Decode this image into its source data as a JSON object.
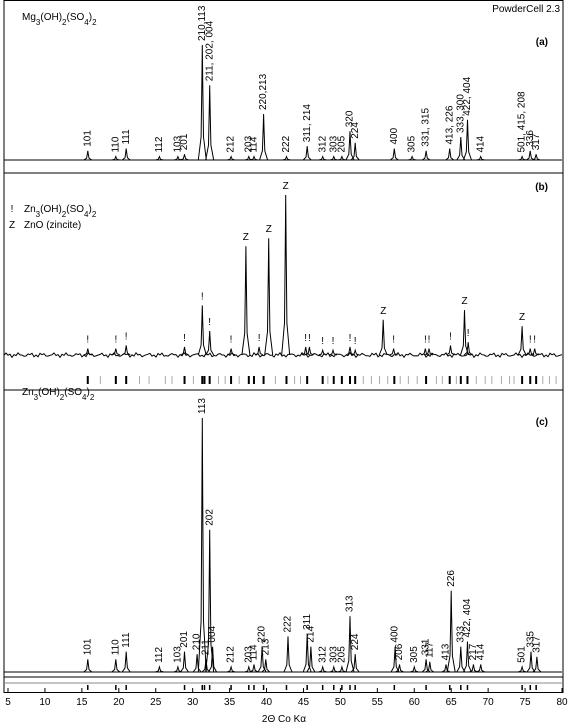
{
  "chart_data": {
    "type": "xrd",
    "software": "PowderCell 2.3",
    "xlabel": "2Θ Co Kα",
    "xlim": [
      5,
      80
    ],
    "xticks": [
      5,
      10,
      15,
      20,
      25,
      30,
      35,
      40,
      45,
      50,
      55,
      60,
      65,
      70,
      75,
      80
    ],
    "panels": [
      {
        "label": "(a)",
        "title": "Mg3(OH)2(SO4)2",
        "ylim": [
          0,
          100
        ],
        "label_style": "rotated",
        "peaks": [
          {
            "x": 15.8,
            "y": 8,
            "label": "101"
          },
          {
            "x": 19.6,
            "y": 3,
            "label": "110"
          },
          {
            "x": 21.0,
            "y": 10,
            "label": "111"
          },
          {
            "x": 25.5,
            "y": 3,
            "label": "112"
          },
          {
            "x": 28.0,
            "y": 3,
            "label": "103"
          },
          {
            "x": 28.9,
            "y": 5,
            "label": "201"
          },
          {
            "x": 31.3,
            "y": 100,
            "label": "210,113"
          },
          {
            "x": 32.3,
            "y": 65,
            "label": "211, 202, 004"
          },
          {
            "x": 35.2,
            "y": 3,
            "label": "212"
          },
          {
            "x": 37.6,
            "y": 3,
            "label": "203"
          },
          {
            "x": 38.3,
            "y": 3,
            "label": "114"
          },
          {
            "x": 39.6,
            "y": 40,
            "label": "220,213"
          },
          {
            "x": 42.7,
            "y": 3,
            "label": "222"
          },
          {
            "x": 45.5,
            "y": 12,
            "label": "311, 214"
          },
          {
            "x": 47.6,
            "y": 3,
            "label": "312"
          },
          {
            "x": 49.1,
            "y": 3,
            "label": "303"
          },
          {
            "x": 50.2,
            "y": 3,
            "label": "205"
          },
          {
            "x": 51.3,
            "y": 25,
            "label": "320"
          },
          {
            "x": 52.0,
            "y": 15,
            "label": "224"
          },
          {
            "x": 57.3,
            "y": 10,
            "label": "400"
          },
          {
            "x": 59.7,
            "y": 3,
            "label": "305"
          },
          {
            "x": 61.6,
            "y": 8,
            "label": "331, 315"
          },
          {
            "x": 64.8,
            "y": 10,
            "label": "413, 226"
          },
          {
            "x": 66.3,
            "y": 20,
            "label": "333, 300"
          },
          {
            "x": 67.2,
            "y": 35,
            "label": "422, 404"
          },
          {
            "x": 69.0,
            "y": 3,
            "label": "414"
          },
          {
            "x": 74.6,
            "y": 3,
            "label": "501, 415, 208"
          },
          {
            "x": 75.7,
            "y": 8,
            "label": "336"
          },
          {
            "x": 76.5,
            "y": 5,
            "label": "317"
          }
        ]
      },
      {
        "label": "(b)",
        "ylim": [
          0,
          100
        ],
        "label_style": "marker",
        "legend": [
          {
            "symbol": "!",
            "text": "Zn3(OH)2(SO4)2"
          },
          {
            "symbol": "Z",
            "text": "ZnO (zincite)"
          }
        ],
        "peaks": [
          {
            "x": 15.8,
            "y": 4,
            "label": "!"
          },
          {
            "x": 19.6,
            "y": 4,
            "label": "!"
          },
          {
            "x": 21.0,
            "y": 6,
            "label": "!"
          },
          {
            "x": 28.9,
            "y": 5,
            "label": "!"
          },
          {
            "x": 31.3,
            "y": 31,
            "label": "!"
          },
          {
            "x": 32.3,
            "y": 15,
            "label": "!"
          },
          {
            "x": 35.2,
            "y": 4,
            "label": "!"
          },
          {
            "x": 37.2,
            "y": 68,
            "label": "Z"
          },
          {
            "x": 39.0,
            "y": 5,
            "label": "!"
          },
          {
            "x": 40.3,
            "y": 73,
            "label": "Z"
          },
          {
            "x": 42.6,
            "y": 100,
            "label": "Z"
          },
          {
            "x": 45.3,
            "y": 5,
            "label": "!"
          },
          {
            "x": 45.8,
            "y": 5,
            "label": "!"
          },
          {
            "x": 47.6,
            "y": 3,
            "label": "!"
          },
          {
            "x": 49.0,
            "y": 3,
            "label": "!"
          },
          {
            "x": 51.3,
            "y": 5,
            "label": "!"
          },
          {
            "x": 52.0,
            "y": 3,
            "label": "!"
          },
          {
            "x": 55.8,
            "y": 22,
            "label": "Z"
          },
          {
            "x": 57.2,
            "y": 4,
            "label": "!"
          },
          {
            "x": 61.5,
            "y": 4,
            "label": "!"
          },
          {
            "x": 62.0,
            "y": 4,
            "label": "!"
          },
          {
            "x": 64.9,
            "y": 6,
            "label": "!"
          },
          {
            "x": 66.8,
            "y": 28,
            "label": "Z"
          },
          {
            "x": 67.3,
            "y": 8,
            "label": "!"
          },
          {
            "x": 74.6,
            "y": 18,
            "label": "Z"
          },
          {
            "x": 75.7,
            "y": 4,
            "label": "!"
          },
          {
            "x": 76.3,
            "y": 4,
            "label": "!"
          }
        ],
        "reference_ticks": {
          "black": [
            15.8,
            19.6,
            21.0,
            28.9,
            31.3,
            31.6,
            32.3,
            35.2,
            37.6,
            38.3,
            39.6,
            42.7,
            45.5,
            47.6,
            49.1,
            50.2,
            51.3,
            52.0,
            57.3,
            61.6,
            64.8,
            66.3,
            67.2,
            74.6,
            75.7,
            76.5
          ],
          "grey": [
            17.5,
            22.8,
            24.1,
            26.3,
            27.2,
            30.1,
            33.5,
            34.4,
            36.3,
            41.2,
            43.8,
            44.6,
            48.3,
            53.1,
            54.2,
            55.3,
            56.4,
            58.1,
            59.2,
            60.4,
            63.0,
            63.8,
            65.7,
            68.4,
            69.6,
            70.5,
            71.8,
            72.9,
            73.5,
            77.4,
            78.3,
            79.2
          ]
        }
      },
      {
        "label": "(c)",
        "title": "Zn3(OH)2(SO4)2",
        "ylim": [
          0,
          100
        ],
        "label_style": "rotated",
        "peaks": [
          {
            "x": 15.8,
            "y": 5,
            "label": "101"
          },
          {
            "x": 19.6,
            "y": 5,
            "label": "110"
          },
          {
            "x": 21.0,
            "y": 8,
            "label": "111"
          },
          {
            "x": 25.5,
            "y": 2,
            "label": "112"
          },
          {
            "x": 28.0,
            "y": 2,
            "label": "103"
          },
          {
            "x": 28.9,
            "y": 8,
            "label": "201"
          },
          {
            "x": 30.6,
            "y": 7,
            "label": "210"
          },
          {
            "x": 31.3,
            "y": 100,
            "label": "113"
          },
          {
            "x": 31.8,
            "y": 5,
            "label": "211"
          },
          {
            "x": 32.3,
            "y": 56,
            "label": "202"
          },
          {
            "x": 32.7,
            "y": 10,
            "label": "004"
          },
          {
            "x": 35.2,
            "y": 2,
            "label": "212"
          },
          {
            "x": 37.6,
            "y": 2,
            "label": "203"
          },
          {
            "x": 38.3,
            "y": 3,
            "label": "114"
          },
          {
            "x": 39.4,
            "y": 10,
            "label": "220"
          },
          {
            "x": 39.9,
            "y": 5,
            "label": "213"
          },
          {
            "x": 42.9,
            "y": 14,
            "label": "222"
          },
          {
            "x": 45.5,
            "y": 15,
            "label": "311"
          },
          {
            "x": 46.0,
            "y": 10,
            "label": "214"
          },
          {
            "x": 47.6,
            "y": 2,
            "label": "312"
          },
          {
            "x": 49.1,
            "y": 2,
            "label": "303"
          },
          {
            "x": 50.2,
            "y": 2,
            "label": "205"
          },
          {
            "x": 51.3,
            "y": 22,
            "label": "313"
          },
          {
            "x": 52.0,
            "y": 7,
            "label": "224"
          },
          {
            "x": 57.4,
            "y": 10,
            "label": "400"
          },
          {
            "x": 58.0,
            "y": 3,
            "label": "206"
          },
          {
            "x": 60.0,
            "y": 2,
            "label": "305"
          },
          {
            "x": 61.6,
            "y": 5,
            "label": "331"
          },
          {
            "x": 62.1,
            "y": 4,
            "label": "117"
          },
          {
            "x": 64.3,
            "y": 3,
            "label": "413"
          },
          {
            "x": 65.0,
            "y": 32,
            "label": "226"
          },
          {
            "x": 66.3,
            "y": 10,
            "label": "333"
          },
          {
            "x": 67.2,
            "y": 12,
            "label": "422, 404"
          },
          {
            "x": 68.0,
            "y": 3,
            "label": "217"
          },
          {
            "x": 69.0,
            "y": 3,
            "label": "414"
          },
          {
            "x": 74.6,
            "y": 2,
            "label": "501"
          },
          {
            "x": 75.8,
            "y": 8,
            "label": "335"
          },
          {
            "x": 76.6,
            "y": 6,
            "label": "317"
          }
        ]
      }
    ]
  }
}
